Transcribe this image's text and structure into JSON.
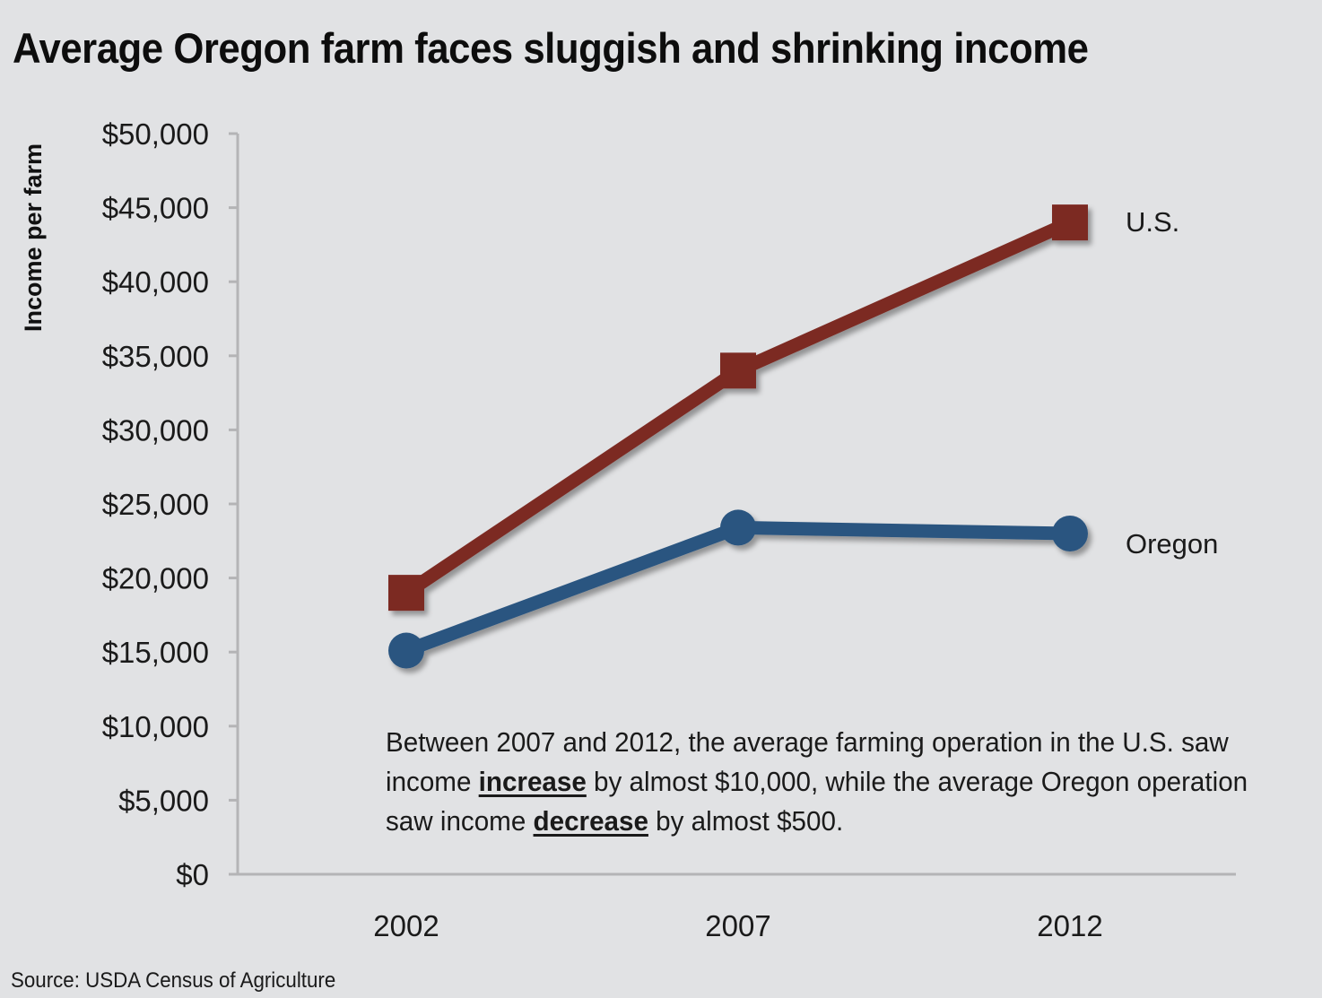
{
  "chart_data": {
    "type": "line",
    "title": "Average Oregon farm faces sluggish and shrinking income",
    "xlabel": "",
    "ylabel": "Income per farm",
    "categories": [
      "2002",
      "2007",
      "2012"
    ],
    "ylim": [
      0,
      50000
    ],
    "yticks": [
      0,
      5000,
      10000,
      15000,
      20000,
      25000,
      30000,
      35000,
      40000,
      45000,
      50000
    ],
    "ytick_labels": [
      "$0",
      "$5,000",
      "$10,000",
      "$15,000",
      "$20,000",
      "$25,000",
      "$30,000",
      "$35,000",
      "$40,000",
      "$45,000",
      "$50,000"
    ],
    "grid": false,
    "legend": "inline-right",
    "series": [
      {
        "name": "U.S.",
        "values": [
          19000,
          34000,
          44000
        ],
        "color": "#7b2a24",
        "marker": "square"
      },
      {
        "name": "Oregon",
        "values": [
          15100,
          23400,
          23000
        ],
        "color": "#2a5580",
        "marker": "circle"
      }
    ],
    "annotation": {
      "part1": "Between 2007 and 2012, the average farming operation in the U.S. saw income ",
      "emph1": "increase",
      "part2": " by almost $10,000, while the average Oregon operation saw income ",
      "emph2": "decrease",
      "part3": " by almost $500."
    },
    "source": "Source: USDA Census of Agriculture"
  }
}
